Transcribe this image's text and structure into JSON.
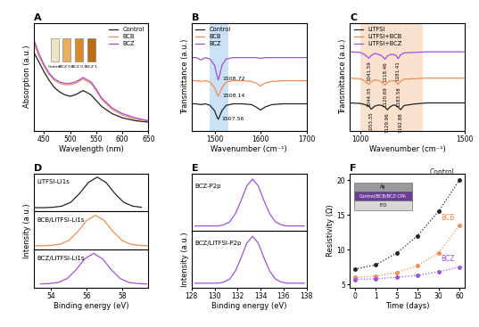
{
  "chart_data": [
    {
      "type": "line",
      "title": "A",
      "x_label": "Wavelength (nm)",
      "y_label": "Absorption (a.u.)",
      "x": [
        430,
        440,
        450,
        460,
        470,
        480,
        490,
        500,
        510,
        520,
        525,
        530,
        540,
        550,
        560,
        580,
        600,
        625,
        650
      ],
      "series": [
        {
          "name": "Control",
          "color": "#222222",
          "values": [
            0.55,
            0.48,
            0.41,
            0.35,
            0.3,
            0.27,
            0.25,
            0.24,
            0.25,
            0.27,
            0.28,
            0.27,
            0.25,
            0.21,
            0.17,
            0.12,
            0.09,
            0.07,
            0.06
          ]
        },
        {
          "name": "BCB",
          "color": "#f28c50",
          "values": [
            0.62,
            0.52,
            0.45,
            0.39,
            0.35,
            0.33,
            0.32,
            0.32,
            0.33,
            0.35,
            0.36,
            0.35,
            0.33,
            0.28,
            0.22,
            0.15,
            0.11,
            0.08,
            0.07
          ]
        },
        {
          "name": "BCZ",
          "color": "#a050e0",
          "values": [
            0.64,
            0.54,
            0.46,
            0.4,
            0.36,
            0.34,
            0.33,
            0.33,
            0.34,
            0.36,
            0.37,
            0.36,
            0.34,
            0.29,
            0.23,
            0.16,
            0.12,
            0.09,
            0.07
          ]
        }
      ],
      "xlim": [
        430,
        650
      ],
      "xticks": [
        450,
        500,
        550,
        600,
        650
      ],
      "ylim": [
        0,
        0.75
      ],
      "yticks": [],
      "tick_labels": "x",
      "legend": "upper right",
      "annotations": [
        "Control",
        "BCZ 0.1",
        "BCZ 0.5",
        "BCZ 1"
      ]
    },
    {
      "type": "line",
      "title": "B",
      "x_label": "Wavenumber (cm⁻¹)",
      "y_label": "Transmittance (a.u.)",
      "x": [
        1450,
        1460,
        1470,
        1480,
        1490,
        1500,
        1505,
        1508,
        1511,
        1516,
        1525,
        1540,
        1560,
        1580,
        1590,
        1600,
        1610,
        1625,
        1650,
        1675,
        1700
      ],
      "series": [
        {
          "name": "Control",
          "color": "#222222",
          "peaks": [
            1507.56
          ],
          "values": [
            0.35,
            0.35,
            0.34,
            0.35,
            0.33,
            0.26,
            0.18,
            0.15,
            0.19,
            0.26,
            0.33,
            0.35,
            0.35,
            0.34,
            0.31,
            0.27,
            0.31,
            0.34,
            0.35,
            0.35,
            0.35
          ]
        },
        {
          "name": "BCB",
          "color": "#f28c50",
          "peaks": [
            1508.14
          ],
          "values": [
            0.65,
            0.65,
            0.64,
            0.65,
            0.63,
            0.56,
            0.48,
            0.45,
            0.49,
            0.56,
            0.63,
            0.65,
            0.65,
            0.64,
            0.62,
            0.58,
            0.62,
            0.64,
            0.65,
            0.65,
            0.65
          ]
        },
        {
          "name": "BCZ",
          "color": "#a050e0",
          "peaks": [
            1508.72
          ],
          "values": [
            0.95,
            0.95,
            0.92,
            0.95,
            0.93,
            0.85,
            0.72,
            0.66,
            0.72,
            0.85,
            0.93,
            0.95,
            0.95,
            0.95,
            0.95,
            0.94,
            0.95,
            0.95,
            0.95,
            0.95,
            0.95
          ]
        }
      ],
      "highlight": [
        1490,
        1530
      ],
      "xlim": [
        1450,
        1700
      ],
      "xticks": [
        1500,
        1600,
        1700
      ],
      "ylim": [
        0,
        1.4
      ],
      "yticks": [],
      "tick_labels": "x",
      "legend": "upper left"
    },
    {
      "type": "line",
      "title": "C",
      "x_label": "Wavenumber (cm⁻¹)",
      "y_label": "Transmittance (a.u.)",
      "x": [
        950,
        1000,
        1020,
        1042,
        1053,
        1070,
        1090,
        1105,
        1119,
        1130,
        1145,
        1160,
        1172,
        1182,
        1193,
        1210,
        1260,
        1320,
        1400,
        1500
      ],
      "series": [
        {
          "name": "LiTFSI",
          "color": "#222222",
          "peaks": [
            1053.35,
            1129.96,
            1192.88
          ],
          "values": [
            0.08,
            0.07,
            0.05,
            0.02,
            -0.04,
            0.02,
            0.04,
            0.03,
            0.0,
            -0.05,
            0.01,
            0.04,
            0.03,
            0.0,
            -0.05,
            0.03,
            0.06,
            0.08,
            0.08,
            0.08
          ]
        },
        {
          "name": "LiTFSI+BCB",
          "color": "#f28c50",
          "peaks": [
            1044.05,
            1120.69,
            1183.58
          ],
          "values": [
            0.55,
            0.54,
            0.5,
            0.43,
            0.48,
            0.52,
            0.5,
            0.47,
            0.42,
            0.47,
            0.5,
            0.5,
            0.48,
            0.43,
            0.49,
            0.53,
            0.54,
            0.55,
            0.55,
            0.55
          ]
        },
        {
          "name": "LiTFSI+BCZ",
          "color": "#a050e0",
          "peaks": [
            1041.59,
            1118.46,
            1181.41
          ],
          "values": [
            1.05,
            1.04,
            1.0,
            0.93,
            0.98,
            1.02,
            1.0,
            0.97,
            0.91,
            0.97,
            1.0,
            1.0,
            0.98,
            0.92,
            0.99,
            1.03,
            1.04,
            1.05,
            1.05,
            1.05
          ]
        }
      ],
      "highlight": [
        1000,
        1300
      ],
      "xlim": [
        950,
        1500
      ],
      "xticks": [
        1000,
        1500
      ],
      "ylim": [
        -0.45,
        1.6
      ],
      "yticks": [],
      "tick_labels": "x",
      "legend": "upper left"
    },
    {
      "type": "line",
      "title": "D",
      "subtitle": "LiTFSI-Li1s",
      "series": [
        {
          "color": "#222222",
          "x": [
            53.1,
            53.6,
            54.1,
            54.6,
            55.1,
            55.6,
            56.1,
            56.6,
            57.1,
            57.6,
            58.1,
            58.6,
            59.1
          ],
          "values": [
            0.1,
            0.1,
            0.11,
            0.14,
            0.24,
            0.47,
            0.76,
            0.9,
            0.76,
            0.47,
            0.24,
            0.14,
            0.11
          ]
        }
      ],
      "xlim": [
        53,
        59.5
      ],
      "xticks": [
        54,
        56,
        58
      ],
      "ylim": [
        0,
        1
      ],
      "yticks": [],
      "tick_labels": false
    },
    {
      "type": "line",
      "subtitle": "BCB/LiTFSI-Li1s",
      "y_label": "Intensity (a.u.)",
      "series": [
        {
          "color": "#f28c50",
          "x": [
            53.0,
            53.5,
            54.0,
            54.5,
            55.0,
            55.5,
            56.0,
            56.5,
            57.0,
            57.5,
            58.0,
            58.5,
            59.0,
            59.5
          ],
          "values": [
            0.1,
            0.1,
            0.11,
            0.14,
            0.24,
            0.47,
            0.76,
            0.9,
            0.76,
            0.47,
            0.24,
            0.14,
            0.11,
            0.1
          ]
        }
      ],
      "xlim": [
        53,
        59.5
      ],
      "xticks": [
        54,
        56,
        58
      ],
      "ylim": [
        0,
        1
      ],
      "yticks": [],
      "tick_labels": false
    },
    {
      "type": "line",
      "subtitle": "BCZ/LiTFSI-Li1s",
      "x_label": "Binding energy (eV)",
      "series": [
        {
          "color": "#a050e0",
          "x": [
            53.4,
            53.9,
            54.4,
            54.9,
            55.4,
            55.9,
            56.4,
            56.9,
            57.4,
            57.9,
            58.4,
            58.9,
            59.4
          ],
          "values": [
            0.1,
            0.11,
            0.14,
            0.24,
            0.47,
            0.76,
            0.9,
            0.76,
            0.47,
            0.24,
            0.14,
            0.11,
            0.1
          ]
        }
      ],
      "xlim": [
        53,
        59.5
      ],
      "xticks": [
        54,
        56,
        58
      ],
      "ylim": [
        0,
        1
      ],
      "yticks": [],
      "tick_labels": "x"
    },
    {
      "type": "line",
      "title": "E",
      "subtitle": "BCZ-P2p",
      "series": [
        {
          "color": "#a050e0",
          "x": [
            128.3,
            128.8,
            129.3,
            129.8,
            130.3,
            130.8,
            131.3,
            131.8,
            132.3,
            132.8,
            133.3,
            133.8,
            134.3,
            134.8,
            135.3,
            135.8,
            136.3,
            136.8,
            137.3,
            137.8
          ],
          "values": [
            0.08,
            0.08,
            0.08,
            0.08,
            0.08,
            0.1,
            0.15,
            0.29,
            0.52,
            0.78,
            0.9,
            0.78,
            0.52,
            0.29,
            0.15,
            0.1,
            0.08,
            0.08,
            0.08,
            0.08
          ]
        }
      ],
      "xlim": [
        128,
        138
      ],
      "xticks": [
        128,
        130,
        132,
        134,
        136,
        138
      ],
      "ylim": [
        0,
        1
      ],
      "yticks": [],
      "tick_labels": false
    },
    {
      "type": "line",
      "subtitle": "BCZ/LiTFSI-P2p",
      "x_label": "Binding energy (eV)",
      "y_label": "Intensity (a.u.)",
      "series": [
        {
          "color": "#a050e0",
          "x": [
            128.3,
            128.8,
            129.3,
            129.8,
            130.3,
            130.8,
            131.3,
            131.8,
            132.3,
            132.8,
            133.3,
            133.8,
            134.3,
            134.8,
            135.3,
            135.8,
            136.3,
            136.8,
            137.3,
            137.8
          ],
          "values": [
            0.08,
            0.08,
            0.08,
            0.08,
            0.08,
            0.1,
            0.15,
            0.29,
            0.52,
            0.78,
            0.9,
            0.78,
            0.52,
            0.29,
            0.15,
            0.1,
            0.08,
            0.08,
            0.08,
            0.08
          ]
        }
      ],
      "xlim": [
        128,
        138
      ],
      "xticks": [
        128,
        130,
        132,
        134,
        136,
        138
      ],
      "ylim": [
        0,
        1
      ],
      "yticks": [],
      "tick_labels": "x"
    },
    {
      "type": "line",
      "title": "F",
      "x_label": "Time (days)",
      "y_label": "Resistivity (Ω)",
      "categories": [
        "0",
        "1",
        "5",
        "15",
        "30",
        "60"
      ],
      "series": [
        {
          "name": "Control",
          "color": "#222222",
          "marker": "circle",
          "line_style": "dotted",
          "values": [
            7.2,
            7.8,
            9.5,
            12.0,
            15.5,
            20.0
          ]
        },
        {
          "name": "BCB",
          "color": "#f28c50",
          "marker": "circle",
          "line_style": "dotted",
          "values": [
            6.0,
            6.2,
            6.7,
            7.7,
            9.5,
            13.5
          ]
        },
        {
          "name": "BCZ",
          "color": "#a050e0",
          "marker": "circle",
          "line_style": "dotted",
          "values": [
            5.7,
            5.8,
            6.0,
            6.3,
            6.8,
            7.5
          ]
        }
      ],
      "ylim": [
        4.5,
        21
      ],
      "yticks": [
        5,
        10,
        15,
        20
      ],
      "annotations": [
        "Ag",
        "Control/BCB/BCZ-CPA",
        "ITO"
      ]
    }
  ]
}
